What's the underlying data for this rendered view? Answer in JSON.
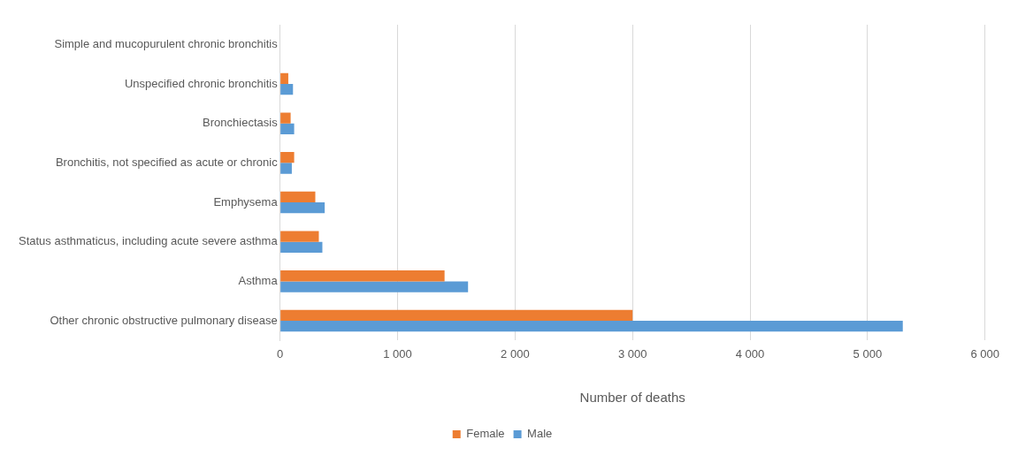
{
  "chart_data": {
    "type": "bar",
    "orientation": "horizontal",
    "xlabel": "Number of deaths",
    "categories": [
      "Simple and mucopurulent chronic bronchitis",
      "Unspecified chronic bronchitis",
      "Bronchiectasis",
      "Bronchitis, not specified as acute or chronic",
      "Emphysema",
      "Status asthmaticus, including acute severe asthma",
      "Asthma",
      "Other chronic obstructive pulmonary disease"
    ],
    "series": [
      {
        "name": "Female",
        "color": "#ed7d31",
        "values": [
          0,
          70,
          90,
          120,
          300,
          330,
          1400,
          3000
        ]
      },
      {
        "name": "Male",
        "color": "#5b9bd5",
        "values": [
          0,
          110,
          120,
          100,
          380,
          360,
          1600,
          5300
        ]
      }
    ],
    "xlim": [
      0,
      6000
    ],
    "xticks": [
      0,
      {
        "value": 1000,
        "label": "1 000"
      },
      {
        "value": 2000,
        "label": "2 000"
      },
      {
        "value": 3000,
        "label": "3 000"
      },
      {
        "value": 4000,
        "label": "4 000"
      },
      {
        "value": 5000,
        "label": "5 000"
      },
      {
        "value": 6000,
        "label": "6 000"
      }
    ],
    "grid": "x",
    "legend": "bottom"
  }
}
